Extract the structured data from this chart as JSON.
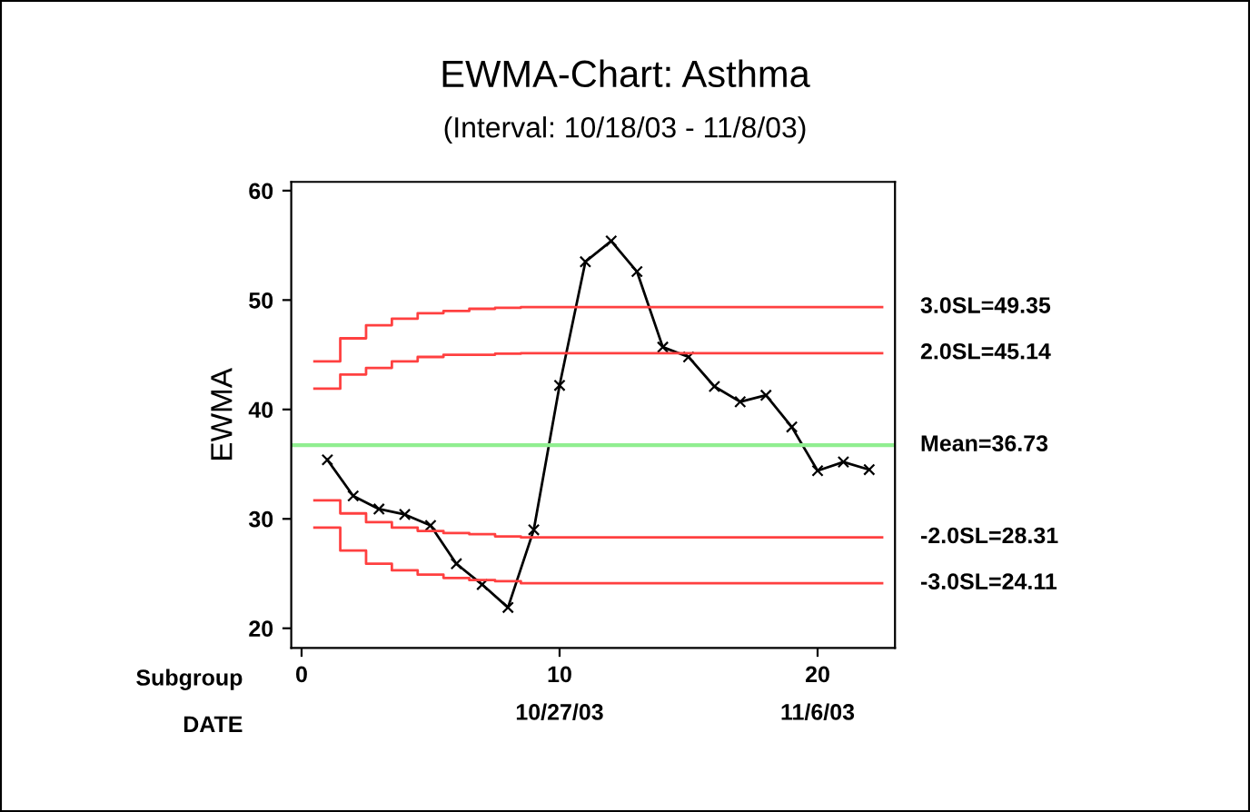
{
  "chart_data": {
    "type": "line",
    "title": "EWMA-Chart: Asthma",
    "subtitle": "(Interval: 10/18/03 - 11/8/03)",
    "ylabel": "EWMA",
    "xlabel": "Subgroup",
    "x2label": "DATE",
    "x": [
      1,
      2,
      3,
      4,
      5,
      6,
      7,
      8,
      9,
      10,
      11,
      12,
      13,
      14,
      15,
      16,
      17,
      18,
      19,
      20,
      21,
      22
    ],
    "series": [
      {
        "color": "#000000",
        "marker": "cross",
        "values": [
          35.4,
          32.1,
          30.9,
          30.4,
          29.4,
          25.9,
          24.0,
          21.9,
          29.0,
          42.2,
          53.5,
          55.4,
          52.6,
          45.7,
          44.8,
          42.1,
          40.7,
          41.3,
          38.4,
          34.4,
          35.2,
          34.5
        ]
      },
      {
        "type": "step",
        "name": "3.0SL=49.35",
        "x": [
          0.5,
          1.5,
          2.5,
          3.5,
          4.5,
          5.5,
          6.5,
          7.5,
          8.5,
          9.5,
          10.5,
          11.5,
          12.5,
          13.5,
          14.5,
          15.5,
          16.5,
          17.5,
          18.5,
          19.5,
          20.5,
          21.5,
          22.5
        ],
        "color": "#ff4040",
        "values": [
          44.4,
          46.5,
          47.7,
          48.3,
          48.8,
          49.0,
          49.2,
          49.3,
          49.35,
          49.35,
          49.35,
          49.35,
          49.35,
          49.35,
          49.35,
          49.35,
          49.35,
          49.35,
          49.35,
          49.35,
          49.35,
          49.35,
          49.35
        ]
      },
      {
        "type": "step",
        "name": "2.0SL=45.14",
        "x": [
          0.5,
          1.5,
          2.5,
          3.5,
          4.5,
          5.5,
          6.5,
          7.5,
          8.5,
          9.5,
          10.5,
          11.5,
          12.5,
          13.5,
          14.5,
          15.5,
          16.5,
          17.5,
          18.5,
          19.5,
          20.5,
          21.5,
          22.5
        ],
        "color": "#ff4040",
        "values": [
          41.9,
          43.2,
          43.8,
          44.4,
          44.8,
          45.0,
          45.0,
          45.1,
          45.14,
          45.14,
          45.14,
          45.14,
          45.14,
          45.14,
          45.14,
          45.14,
          45.14,
          45.14,
          45.14,
          45.14,
          45.14,
          45.14,
          45.14
        ]
      },
      {
        "type": "step",
        "name": "-2.0SL=28.31",
        "x": [
          0.5,
          1.5,
          2.5,
          3.5,
          4.5,
          5.5,
          6.5,
          7.5,
          8.5,
          9.5,
          10.5,
          11.5,
          12.5,
          13.5,
          14.5,
          15.5,
          16.5,
          17.5,
          18.5,
          19.5,
          20.5,
          21.5,
          22.5
        ],
        "color": "#ff4040",
        "values": [
          31.7,
          30.5,
          29.7,
          29.2,
          28.9,
          28.7,
          28.6,
          28.4,
          28.31,
          28.31,
          28.31,
          28.31,
          28.31,
          28.31,
          28.31,
          28.31,
          28.31,
          28.31,
          28.31,
          28.31,
          28.31,
          28.31,
          28.31
        ]
      },
      {
        "type": "step",
        "name": "-3.0SL=24.11",
        "x": [
          0.5,
          1.5,
          2.5,
          3.5,
          4.5,
          5.5,
          6.5,
          7.5,
          8.5,
          9.5,
          10.5,
          11.5,
          12.5,
          13.5,
          14.5,
          15.5,
          16.5,
          17.5,
          18.5,
          19.5,
          20.5,
          21.5,
          22.5
        ],
        "color": "#ff4040",
        "values": [
          29.2,
          27.1,
          25.9,
          25.3,
          24.9,
          24.6,
          24.4,
          24.3,
          24.11,
          24.11,
          24.11,
          24.11,
          24.11,
          24.11,
          24.11,
          24.11,
          24.11,
          24.11,
          24.11,
          24.11,
          24.11,
          24.11,
          24.11
        ]
      }
    ],
    "ref_lines": [
      {
        "axis": "y",
        "value": 36.73,
        "label": "Mean=36.73",
        "color": "#90ee90"
      }
    ],
    "xlim": [
      -0.4,
      23
    ],
    "xticks": [
      0,
      10,
      20
    ],
    "x2lim": [
      "2003-10-16T14:24",
      "2003-11-09"
    ],
    "x2ticks": [
      {
        "value": "2003-10-27",
        "label": "10/27/03"
      },
      {
        "value": "2003-11-06",
        "label": "11/6/03"
      }
    ],
    "ylim": [
      18.2,
      60.8
    ],
    "yticks": [
      20,
      30,
      40,
      50,
      60
    ]
  }
}
